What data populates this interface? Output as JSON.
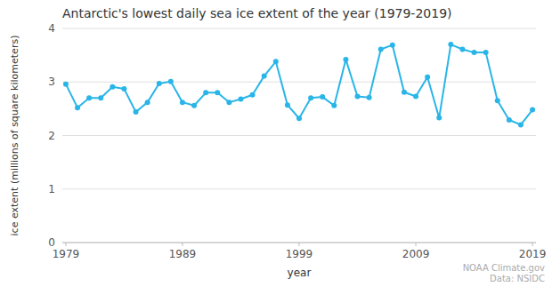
{
  "chart_data": {
    "type": "line",
    "title": "Antarctic's lowest daily sea ice extent of the year (1979-2019)",
    "xlabel": "year",
    "ylabel": "ice extent (millions of square kilometers)",
    "x": [
      1979,
      1980,
      1981,
      1982,
      1983,
      1984,
      1985,
      1986,
      1987,
      1988,
      1989,
      1990,
      1991,
      1992,
      1993,
      1994,
      1995,
      1996,
      1997,
      1998,
      1999,
      2000,
      2001,
      2002,
      2003,
      2004,
      2005,
      2006,
      2007,
      2008,
      2009,
      2010,
      2011,
      2012,
      2013,
      2014,
      2015,
      2016,
      2017,
      2018,
      2019
    ],
    "values": [
      2.96,
      2.52,
      2.7,
      2.7,
      2.91,
      2.87,
      2.44,
      2.62,
      2.97,
      3.01,
      2.62,
      2.56,
      2.8,
      2.8,
      2.62,
      2.68,
      2.76,
      3.11,
      3.38,
      2.57,
      2.32,
      2.7,
      2.72,
      2.56,
      3.42,
      2.73,
      2.71,
      3.61,
      3.69,
      2.81,
      2.73,
      3.09,
      2.33,
      3.7,
      3.61,
      3.55,
      3.55,
      2.65,
      2.29,
      2.2,
      2.48
    ],
    "color": "#29b5e8",
    "marker": "circle",
    "xlim": [
      1978.7,
      2019.3
    ],
    "xticks": [
      1979,
      1989,
      1999,
      2009,
      2019
    ],
    "ylim": [
      0,
      4
    ],
    "yticks": [
      0,
      1,
      2,
      3,
      4
    ],
    "grid": true,
    "annotation": "NOAA Climate.gov\nData: NSIDC"
  }
}
